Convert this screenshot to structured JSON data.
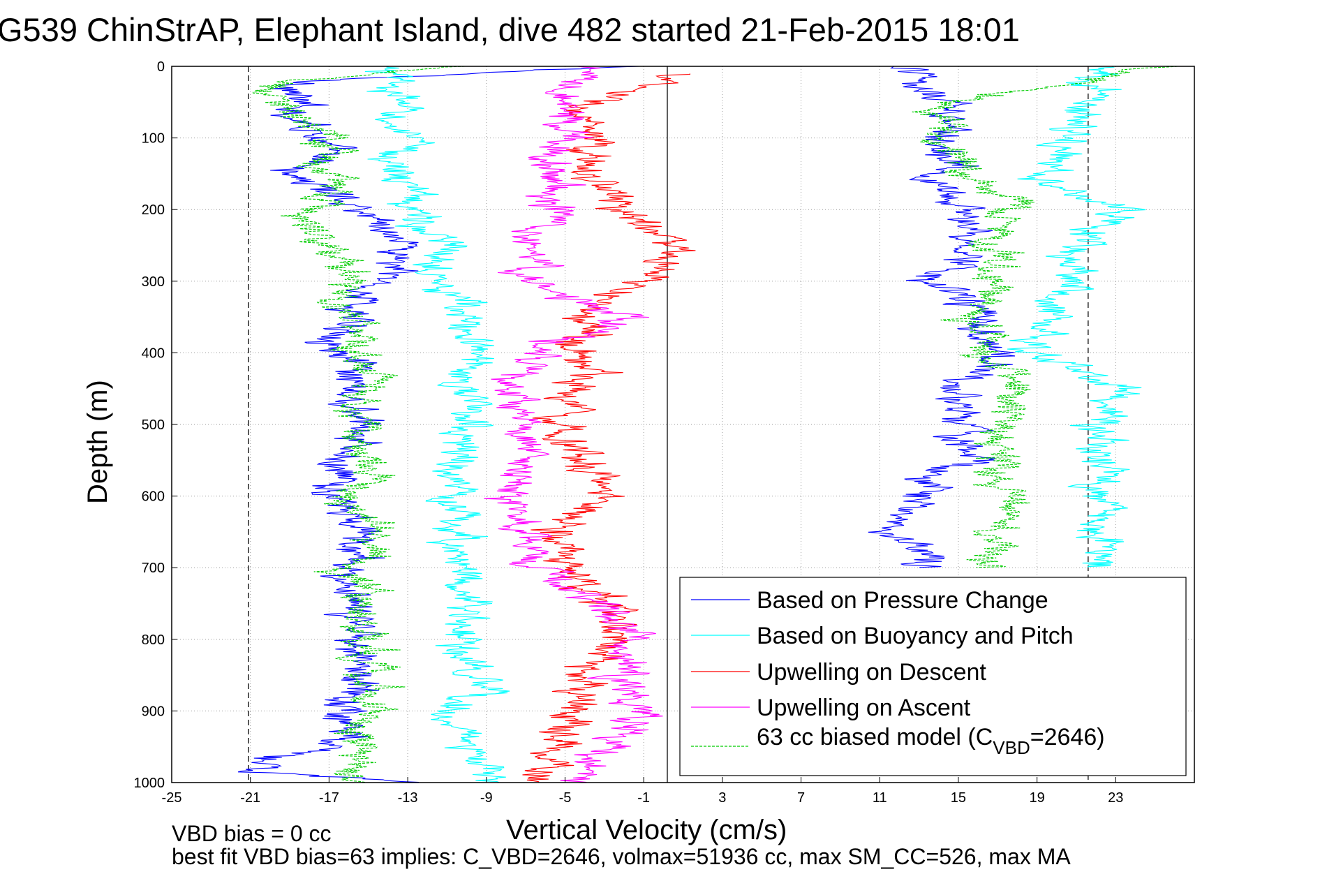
{
  "chart_data": {
    "type": "line",
    "title": "G539 ChinStrAP, Elephant Island, dive 482 started 21-Feb-2015 18:01",
    "xlabel": "Vertical Velocity (cm/s)",
    "ylabel": "Depth (m)",
    "xlim": [
      -25,
      27
    ],
    "ylim": [
      1000,
      0
    ],
    "y_reversed": true,
    "grid": true,
    "x_ticks": [
      -25,
      -21,
      -17,
      -13,
      -9,
      -5,
      -1,
      3,
      7,
      11,
      15,
      19,
      23
    ],
    "y_ticks": [
      0,
      100,
      200,
      300,
      400,
      500,
      600,
      700,
      800,
      900,
      1000
    ],
    "reference_lines": [
      {
        "x": -21.1,
        "style": "dashed",
        "color": "#000000"
      },
      {
        "x": 0.2,
        "style": "solid",
        "color": "#000000"
      },
      {
        "x": 21.6,
        "style": "dashed",
        "color": "#000000"
      }
    ],
    "legend_position": "bottom-right",
    "series": [
      {
        "name": "Based on Pressure Change",
        "color": "#0000ff",
        "style": "solid",
        "segments": [
          {
            "depth": [
              0,
              20,
              50,
              100,
              150,
              200,
              250,
              300,
              350,
              400,
              450,
              500,
              550,
              600,
              650,
              700,
              750,
              800,
              850,
              900,
              950,
              985,
              1000
            ],
            "vel": [
              -2,
              -18,
              -19,
              -17,
              -19,
              -15,
              -13,
              -14.5,
              -16,
              -16,
              -16.5,
              -15.5,
              -16.5,
              -17,
              -15.5,
              -16,
              -16.5,
              -15,
              -15.5,
              -16,
              -16,
              -22,
              -12
            ]
          },
          {
            "depth": [
              0,
              50,
              100,
              150,
              200,
              250,
              300,
              350,
              400,
              450,
              500,
              550,
              600,
              650,
              700
            ],
            "vel": [
              12,
              14.5,
              14,
              14,
              15.5,
              16,
              14,
              16,
              16.5,
              14.5,
              15,
              15.5,
              13,
              11.5,
              14
            ]
          }
        ]
      },
      {
        "name": "Based on Buoyancy and Pitch",
        "color": "#00ffff",
        "style": "solid",
        "segments": [
          {
            "depth": [
              0,
              50,
              100,
              150,
              200,
              250,
              300,
              350,
              400,
              450,
              500,
              550,
              600,
              650,
              700,
              750,
              800,
              850,
              900,
              950,
              1000
            ],
            "vel": [
              -14.5,
              -13.5,
              -13.5,
              -13.5,
              -12.5,
              -11.5,
              -10.5,
              -10.5,
              -9.5,
              -10,
              -10,
              -10.5,
              -11,
              -10.5,
              -10,
              -10,
              -10.5,
              -10,
              -10.5,
              -10,
              -9
            ]
          },
          {
            "depth": [
              0,
              50,
              100,
              150,
              200,
              250,
              300,
              350,
              400,
              450,
              500,
              550,
              600,
              650,
              700
            ],
            "vel": [
              22,
              21,
              20.5,
              19.5,
              23,
              21,
              21,
              19.5,
              19,
              23,
              22,
              22.5,
              22,
              23,
              22
            ]
          }
        ]
      },
      {
        "name": "Upwelling on Descent",
        "color": "#ff0000",
        "style": "solid",
        "segments": [
          {
            "depth": [
              10,
              50,
              100,
              150,
              200,
              250,
              300,
              350,
              400,
              450,
              500,
              550,
              600,
              650,
              700,
              750,
              800,
              850,
              900,
              950,
              1000
            ],
            "vel": [
              1,
              -4,
              -4.5,
              -3.5,
              -2,
              0.5,
              -1.5,
              -4.5,
              -4,
              -4,
              -5,
              -4,
              -3,
              -5,
              -5,
              -3,
              -2,
              -5,
              -4.5,
              -5,
              -7
            ]
          }
        ]
      },
      {
        "name": "Upwelling on Ascent",
        "color": "#ff00ff",
        "style": "solid",
        "segments": [
          {
            "depth": [
              0,
              50,
              100,
              150,
              200,
              250,
              300,
              350,
              400,
              450,
              500,
              550,
              600,
              650,
              700,
              750,
              800,
              850,
              900,
              950,
              1000
            ],
            "vel": [
              -4.5,
              -5.5,
              -5,
              -5.5,
              -5.5,
              -6.5,
              -7,
              -2,
              -6.5,
              -8,
              -7.5,
              -7,
              -7.5,
              -7.5,
              -6.5,
              -3,
              -1.5,
              -2,
              -1.5,
              -2.5,
              -3.5
            ]
          }
        ]
      },
      {
        "name": "63 cc biased model (C<sub>VBD</sub>=2646)",
        "legend_parts": [
          "63 cc biased model (C",
          "VBD",
          "=2646)"
        ],
        "color": "#00cc00",
        "style": "dashed",
        "segments": [
          {
            "depth": [
              0,
              20,
              50,
              100,
              150,
              200,
              250,
              300,
              350,
              400,
              450,
              500,
              550,
              600,
              650,
              700,
              750,
              800,
              850,
              900,
              950,
              1000
            ],
            "vel": [
              -10,
              -20,
              -19,
              -17.5,
              -17,
              -18,
              -17,
              -16,
              -16,
              -15.5,
              -15,
              -15.5,
              -15,
              -15,
              -15,
              -15.5,
              -15.5,
              -14.5,
              -15,
              -15,
              -15,
              -16
            ]
          },
          {
            "depth": [
              0,
              50,
              100,
              150,
              200,
              250,
              300,
              350,
              400,
              450,
              500,
              550,
              600,
              650,
              700
            ],
            "vel": [
              26,
              14.5,
              14,
              15,
              17.5,
              16.5,
              17.5,
              16,
              16,
              17.5,
              17,
              17,
              17.5,
              17,
              17
            ]
          }
        ]
      }
    ]
  },
  "notes": {
    "line1": "VBD bias = 0 cc",
    "line2": "best fit VBD bias=63 implies: C_VBD=2646, volmax=51936 cc, max SM_CC=526, max MA"
  }
}
